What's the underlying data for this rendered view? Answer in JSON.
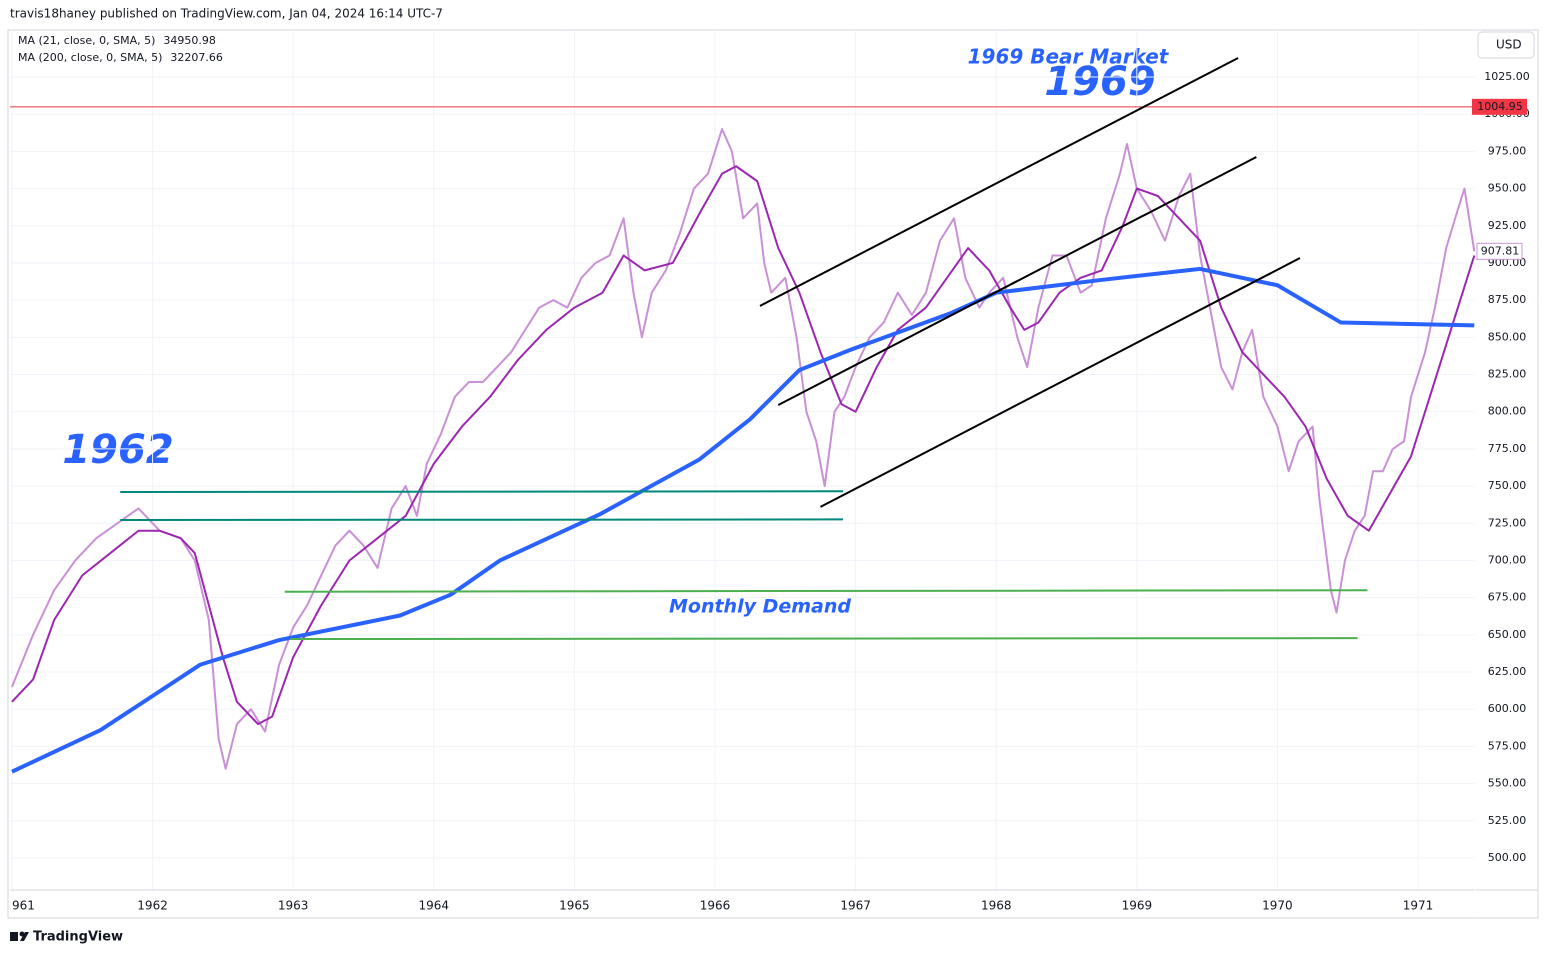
{
  "header": {
    "publisher": "travis18haney published on TradingView.com, Jan 04, 2024 16:14 UTC-7"
  },
  "footer": {
    "brand": "TradingView"
  },
  "chart_data": {
    "type": "line",
    "currency": "USD",
    "annotations": [
      "1969 Bear Market",
      "1969",
      "1962",
      "Monthly Demand"
    ],
    "xlim": [
      1960.986,
      1971.405
    ],
    "ylim": [
      478.49,
      1056.59
    ],
    "xticks": [
      {
        "value": 1961,
        "label": "961"
      },
      1962,
      1963,
      1964,
      1965,
      1966,
      1967,
      1968,
      1969,
      1970,
      1971
    ],
    "yticks": [
      {
        "value": 500,
        "label": "500.00"
      },
      {
        "value": 525,
        "label": "525.00"
      },
      {
        "value": 550,
        "label": "550.00"
      },
      {
        "value": 575,
        "label": "575.00"
      },
      {
        "value": 600,
        "label": "600.00"
      },
      {
        "value": 625,
        "label": "625.00"
      },
      {
        "value": 650,
        "label": "650.00"
      },
      {
        "value": 675,
        "label": "675.00"
      },
      {
        "value": 700,
        "label": "700.00"
      },
      {
        "value": 725,
        "label": "725.00"
      },
      {
        "value": 750,
        "label": "750.00"
      },
      {
        "value": 775,
        "label": "775.00"
      },
      {
        "value": 800,
        "label": "800.00"
      },
      {
        "value": 825,
        "label": "825.00"
      },
      {
        "value": 850,
        "label": "850.00"
      },
      {
        "value": 875,
        "label": "875.00"
      },
      {
        "value": 900,
        "label": "900.00"
      },
      {
        "value": 925,
        "label": "925.00"
      },
      {
        "value": 950,
        "label": "950.00"
      },
      {
        "value": 975,
        "label": "975.00"
      },
      {
        "value": 1000,
        "label": "1000.00"
      },
      {
        "value": 1025,
        "label": "1025.00"
      }
    ],
    "grid": true,
    "last_price": 907.81,
    "last_price_color": "#ce93d8",
    "series": [
      {
        "color": "#c990d6",
        "x": [
          1961.0,
          1961.15,
          1961.3,
          1961.45,
          1961.6,
          1961.75,
          1961.9,
          1962.05,
          1962.2,
          1962.3,
          1962.4,
          1962.47,
          1962.52,
          1962.6,
          1962.7,
          1962.8,
          1962.9,
          1963.0,
          1963.1,
          1963.2,
          1963.3,
          1963.4,
          1963.5,
          1963.6,
          1963.7,
          1963.8,
          1963.88,
          1963.95,
          1964.05,
          1964.15,
          1964.25,
          1964.35,
          1964.45,
          1964.55,
          1964.65,
          1964.75,
          1964.85,
          1964.95,
          1965.05,
          1965.15,
          1965.25,
          1965.35,
          1965.42,
          1965.48,
          1965.55,
          1965.65,
          1965.75,
          1965.85,
          1965.95,
          1966.05,
          1966.12,
          1966.2,
          1966.3,
          1966.35,
          1966.4,
          1966.5,
          1966.58,
          1966.65,
          1966.72,
          1966.78,
          1966.85,
          1966.92,
          1967.0,
          1967.1,
          1967.2,
          1967.3,
          1967.4,
          1967.5,
          1967.6,
          1967.7,
          1967.78,
          1967.88,
          1967.95,
          1968.05,
          1968.15,
          1968.22,
          1968.3,
          1968.4,
          1968.5,
          1968.6,
          1968.68,
          1968.78,
          1968.88,
          1968.93,
          1969.0,
          1969.1,
          1969.2,
          1969.3,
          1969.38,
          1969.45,
          1969.52,
          1969.6,
          1969.68,
          1969.75,
          1969.82,
          1969.9,
          1970.0,
          1970.08,
          1970.15,
          1970.25,
          1970.3,
          1970.38,
          1970.42,
          1970.48,
          1970.55,
          1970.62,
          1970.68,
          1970.75,
          1970.82,
          1970.9,
          1970.95,
          1971.05,
          1971.12,
          1971.2,
          1971.28,
          1971.33,
          1971.4
        ],
        "values": [
          615,
          650,
          680,
          700,
          715,
          725,
          735,
          720,
          715,
          700,
          660,
          580,
          560,
          590,
          600,
          585,
          630,
          655,
          670,
          690,
          710,
          720,
          710,
          695,
          735,
          750,
          730,
          765,
          785,
          810,
          820,
          820,
          830,
          840,
          855,
          870,
          875,
          870,
          890,
          900,
          905,
          930,
          880,
          850,
          880,
          895,
          920,
          950,
          960,
          990,
          975,
          930,
          940,
          900,
          880,
          890,
          850,
          800,
          780,
          750,
          800,
          810,
          830,
          850,
          860,
          880,
          865,
          880,
          915,
          930,
          890,
          870,
          880,
          890,
          850,
          830,
          870,
          905,
          905,
          880,
          885,
          930,
          960,
          980,
          950,
          935,
          915,
          945,
          960,
          905,
          870,
          830,
          815,
          840,
          855,
          810,
          790,
          760,
          780,
          790,
          740,
          680,
          665,
          700,
          720,
          730,
          760,
          760,
          775,
          780,
          810,
          840,
          870,
          910,
          935,
          950,
          907.81
        ]
      },
      {
        "name": "MA (21, close, 0, SMA, 5)",
        "legend_value": 34950.98,
        "color": "#9c27b0",
        "x": [
          1961.0,
          1961.15,
          1961.3,
          1961.5,
          1961.7,
          1961.9,
          1962.05,
          1962.2,
          1962.3,
          1962.4,
          1962.5,
          1962.6,
          1962.75,
          1962.85,
          1963.0,
          1963.2,
          1963.4,
          1963.6,
          1963.8,
          1964.0,
          1964.2,
          1964.4,
          1964.6,
          1964.8,
          1965.0,
          1965.2,
          1965.35,
          1965.5,
          1965.7,
          1965.9,
          1966.05,
          1966.15,
          1966.3,
          1966.45,
          1966.6,
          1966.75,
          1966.9,
          1967.0,
          1967.15,
          1967.3,
          1967.5,
          1967.65,
          1967.8,
          1967.95,
          1968.1,
          1968.2,
          1968.3,
          1968.45,
          1968.6,
          1968.75,
          1968.9,
          1969.0,
          1969.15,
          1969.3,
          1969.45,
          1969.6,
          1969.75,
          1969.9,
          1970.05,
          1970.2,
          1970.35,
          1970.5,
          1970.65,
          1970.8,
          1970.95,
          1971.1,
          1971.25,
          1971.4
        ],
        "values": [
          605,
          620,
          660,
          690,
          705,
          720,
          720,
          715,
          705,
          670,
          635,
          605,
          590,
          595,
          635,
          670,
          700,
          715,
          730,
          765,
          790,
          810,
          835,
          855,
          870,
          880,
          905,
          895,
          900,
          935,
          960,
          965,
          955,
          910,
          880,
          840,
          805,
          800,
          830,
          855,
          870,
          890,
          910,
          895,
          870,
          855,
          860,
          880,
          890,
          895,
          925,
          950,
          945,
          930,
          915,
          870,
          840,
          825,
          810,
          790,
          755,
          730,
          720,
          745,
          770,
          815,
          860,
          905
        ]
      },
      {
        "name": "MA (200, close, 0, SMA, 5)",
        "legend_value": 32207.66,
        "color": "#2962ff",
        "x": [
          1961.0,
          1961.63,
          1962.34,
          1962.9,
          1963.76,
          1964.12,
          1964.47,
          1965.18,
          1965.89,
          1966.25,
          1966.6,
          1966.96,
          1967.67,
          1968.0,
          1968.74,
          1969.45,
          1970.0,
          1970.45,
          1971.4
        ],
        "values": [
          558,
          586,
          630,
          646.5,
          663,
          677,
          700,
          731,
          768,
          795,
          828,
          841.5,
          866,
          880,
          888.5,
          896,
          885,
          860,
          858
        ]
      }
    ],
    "hlines": [
      {
        "value": 1004.95,
        "color": "#f23645"
      }
    ],
    "trendlines": [
      {
        "x": [
          1966.32,
          1969.72
        ],
        "y": [
          871.1,
          1037.8
        ],
        "color": "#000000"
      },
      {
        "x": [
          1966.45,
          1969.85
        ],
        "y": [
          804.5,
          971.2
        ],
        "color": "#000000"
      },
      {
        "x": [
          1966.75,
          1970.16
        ],
        "y": [
          736,
          903.3
        ],
        "color": "#000000"
      },
      {
        "x": [
          1961.77,
          1966.91
        ],
        "y": [
          746,
          746.5
        ],
        "color": "#00897b"
      },
      {
        "x": [
          1961.77,
          1966.91
        ],
        "y": [
          727.2,
          727.6
        ],
        "color": "#00897b"
      },
      {
        "x": [
          1962.94,
          1970.64
        ],
        "y": [
          679,
          680
        ],
        "color": "#4caf50"
      },
      {
        "x": [
          1962.98,
          1970.57
        ],
        "y": [
          647.2,
          647.8
        ],
        "color": "#4caf50"
      }
    ]
  }
}
